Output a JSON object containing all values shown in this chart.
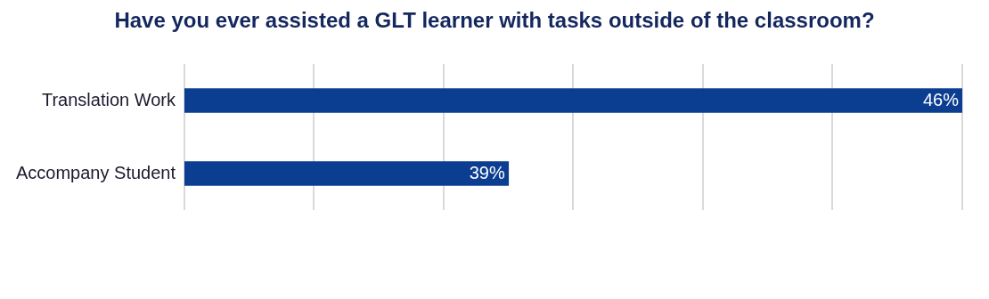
{
  "chart_data": {
    "type": "bar",
    "orientation": "horizontal",
    "title": "Have you ever assisted a GLT learner with tasks outside of the classroom?",
    "categories": [
      "Translation Work",
      "Accompany Student"
    ],
    "values": [
      46,
      39
    ],
    "color": "#0b3d91",
    "value_labels": [
      "46%",
      "39%"
    ],
    "xlim": [
      34,
      46
    ],
    "xticks": [
      {
        "value": 34,
        "label": null
      },
      {
        "value": 36,
        "label": null
      },
      {
        "value": 38,
        "label": null
      },
      {
        "value": 40,
        "label": null
      },
      {
        "value": 42,
        "label": null
      },
      {
        "value": 44,
        "label": null
      },
      {
        "value": 46,
        "label": null
      }
    ],
    "grid": "x",
    "tick_labels": "y",
    "legend": false
  }
}
